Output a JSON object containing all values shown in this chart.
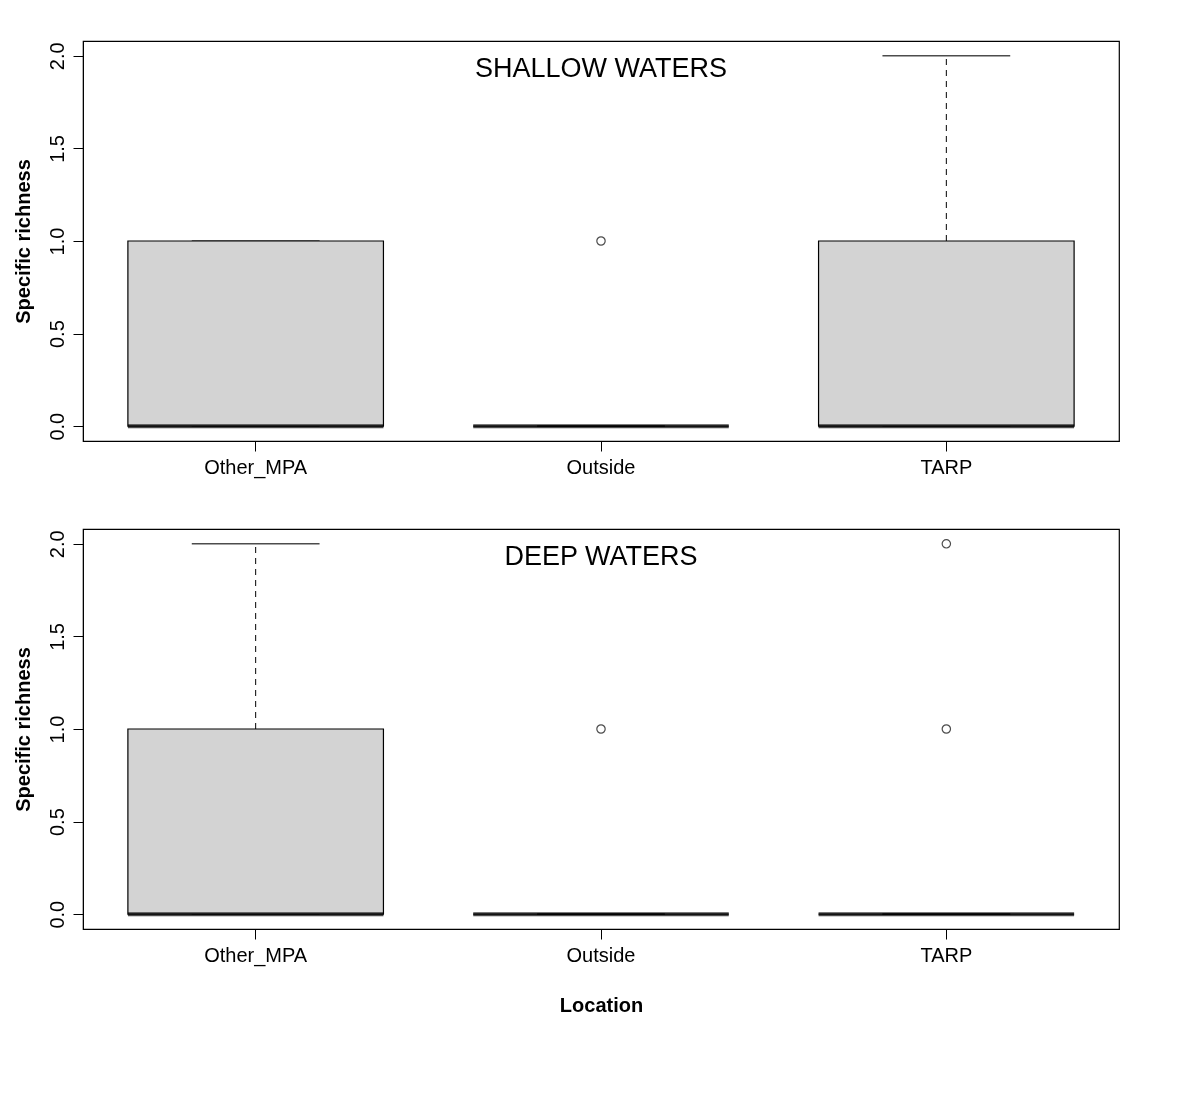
{
  "chart_data": [
    {
      "type": "box",
      "title": "SHALLOW WATERS",
      "ylabel": "Specific richness",
      "categories": [
        "Other_MPA",
        "Outside",
        "TARP"
      ],
      "boxes": [
        {
          "low": 0,
          "q1": 0,
          "median": 0,
          "q3": 1,
          "high": 1
        },
        {
          "low": 0,
          "q1": 0,
          "median": 0,
          "q3": 0,
          "high": 0,
          "outliers": [
            1
          ]
        },
        {
          "low": 0,
          "q1": 0,
          "median": 0,
          "q3": 1,
          "high": 2
        }
      ],
      "ylim": [
        -0.08,
        2.08
      ],
      "yticks": [
        {
          "value": 0,
          "label": "0.0"
        },
        {
          "value": 0.5,
          "label": "0.5"
        },
        {
          "value": 1,
          "label": "1.0"
        },
        {
          "value": 1.5,
          "label": "1.5"
        },
        {
          "value": 2,
          "label": "2.0"
        }
      ]
    },
    {
      "type": "box",
      "title": "DEEP WATERS",
      "ylabel": "Specific richness",
      "xlabel": "Location",
      "categories": [
        "Other_MPA",
        "Outside",
        "TARP"
      ],
      "boxes": [
        {
          "low": 0,
          "q1": 0,
          "median": 0,
          "q3": 1,
          "high": 2
        },
        {
          "low": 0,
          "q1": 0,
          "median": 0,
          "q3": 0,
          "high": 0,
          "outliers": [
            1
          ]
        },
        {
          "low": 0,
          "q1": 0,
          "median": 0,
          "q3": 0,
          "high": 0,
          "outliers": [
            1,
            2
          ]
        }
      ],
      "ylim": [
        -0.08,
        2.08
      ],
      "yticks": [
        {
          "value": 0,
          "label": "0.0"
        },
        {
          "value": 0.5,
          "label": "0.5"
        },
        {
          "value": 1,
          "label": "1.0"
        },
        {
          "value": 1.5,
          "label": "1.5"
        },
        {
          "value": 2,
          "label": "2.0"
        }
      ]
    }
  ]
}
